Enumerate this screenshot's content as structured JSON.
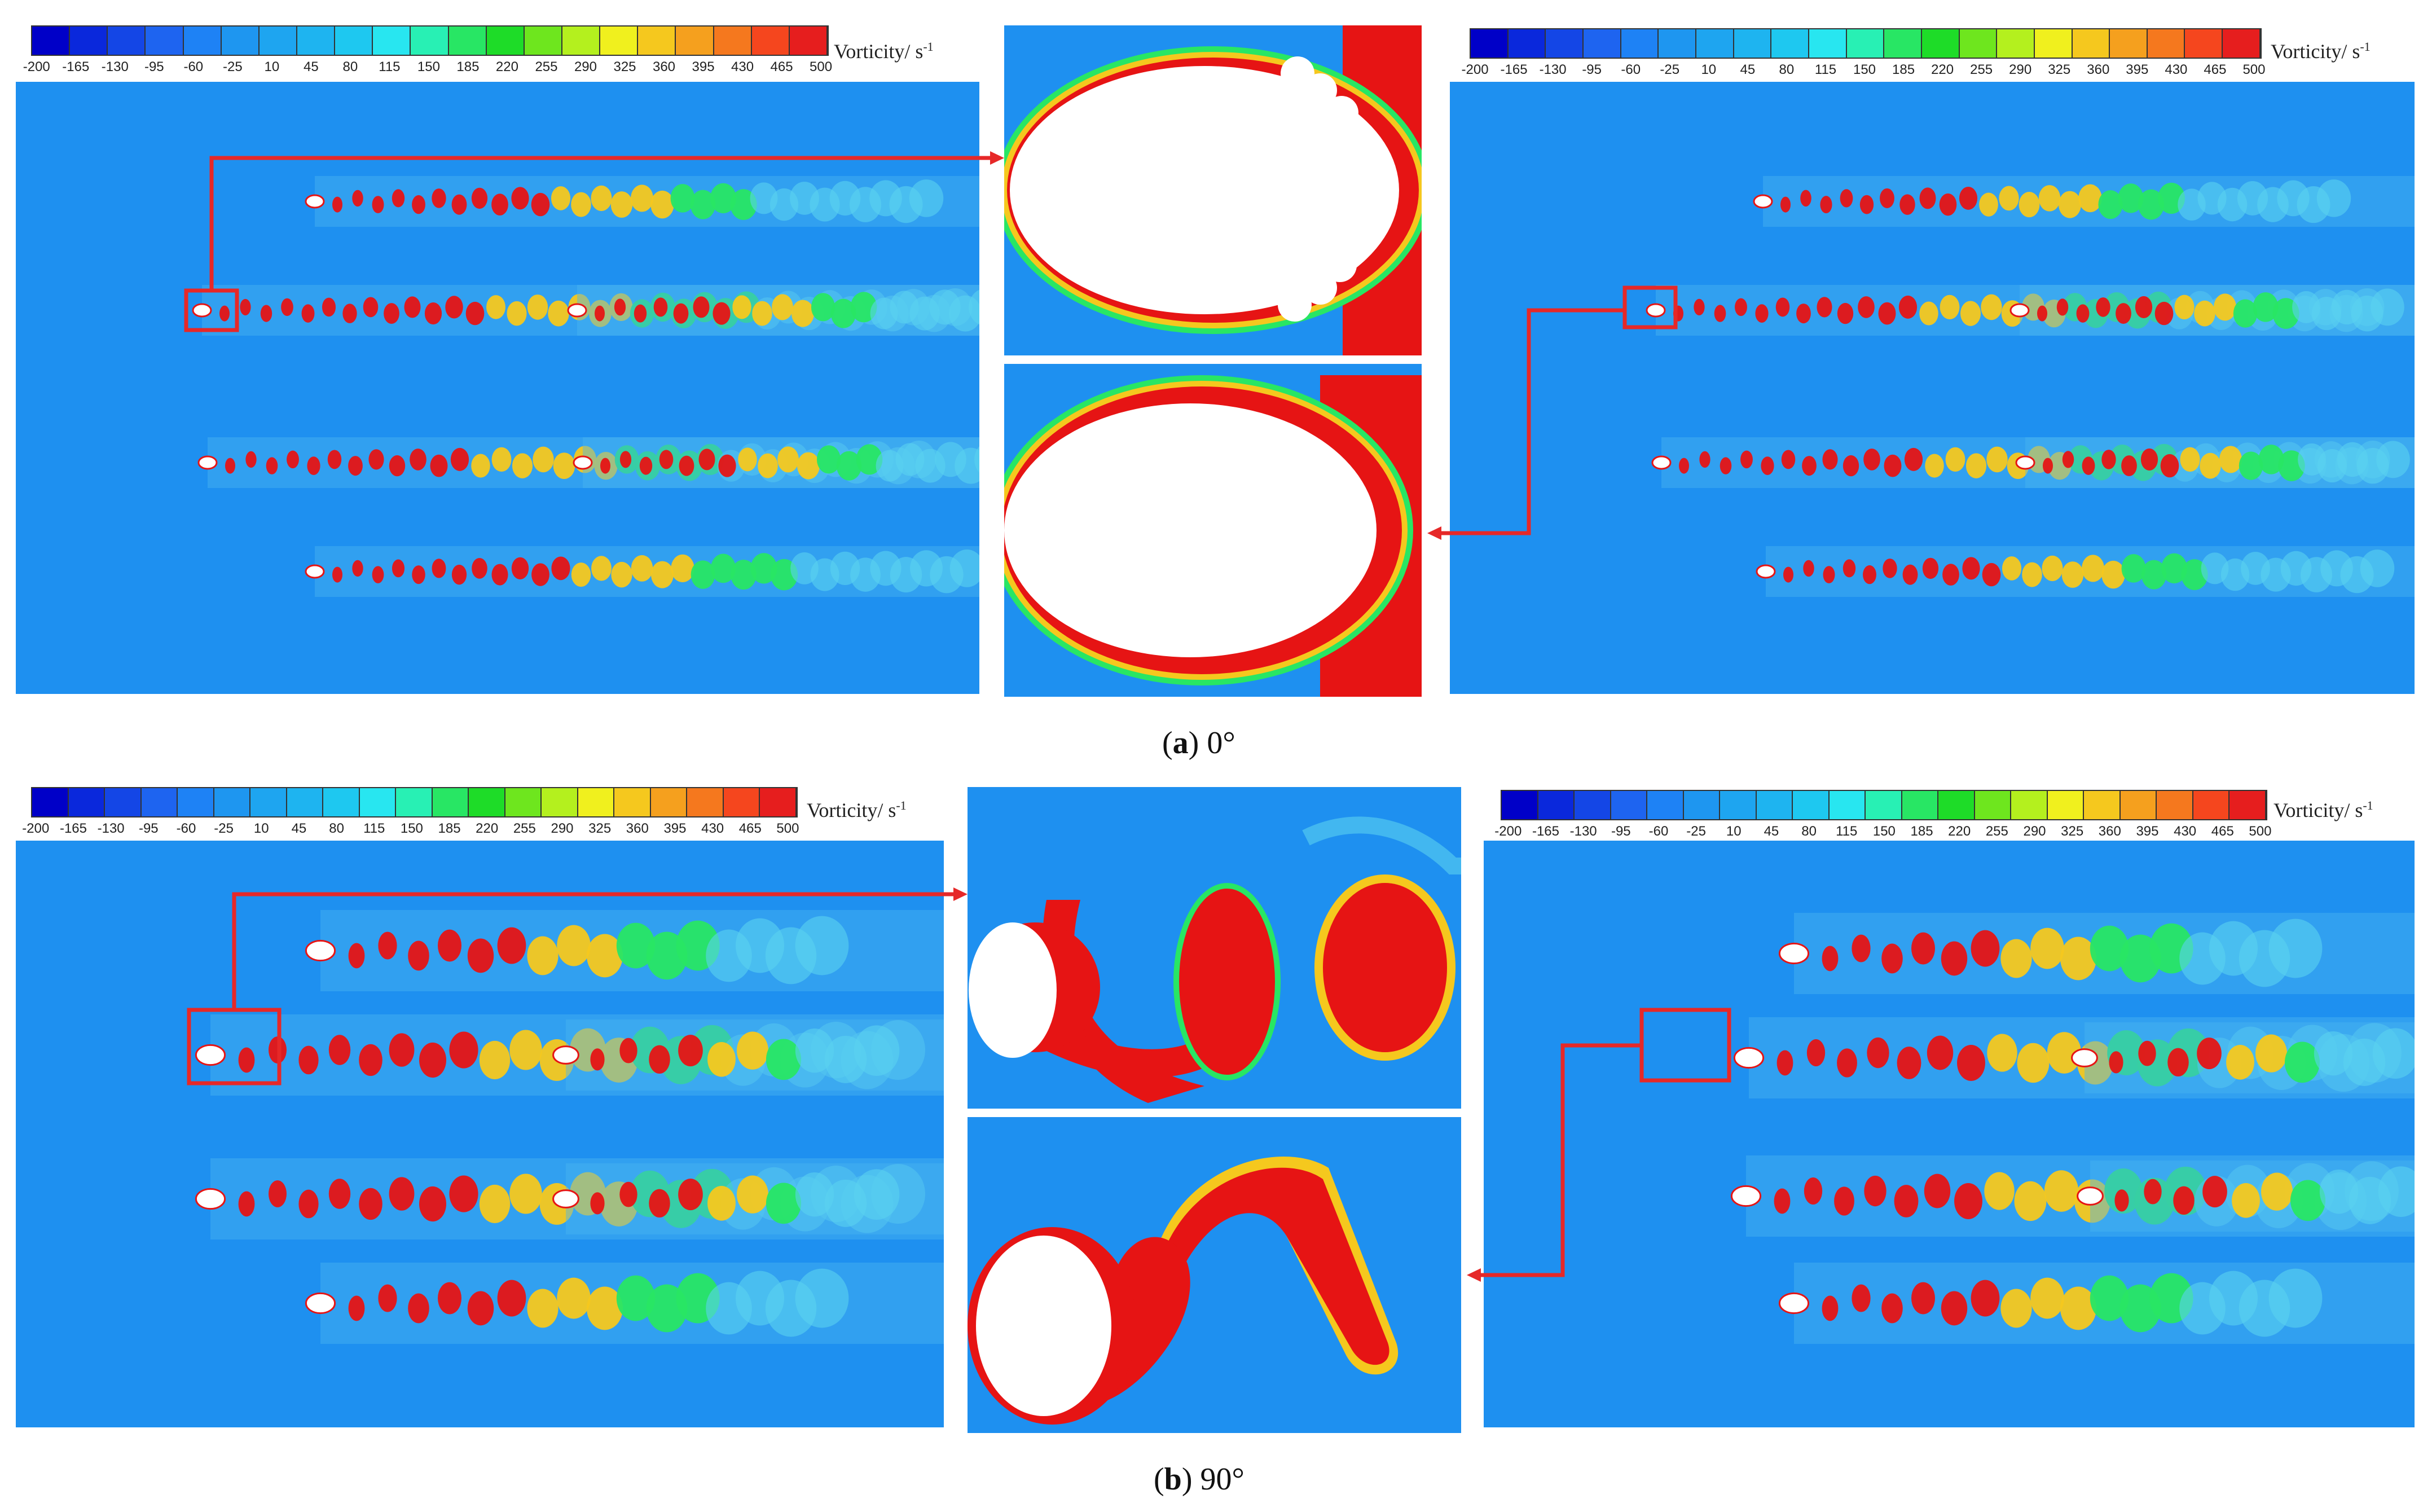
{
  "colorbar": {
    "title": "Vorticity/ s",
    "title_exp": "-1",
    "ticks": [
      "-200",
      "-165",
      "-130",
      "-95",
      "-60",
      "-25",
      "10",
      "45",
      "80",
      "115",
      "150",
      "185",
      "220",
      "255",
      "290",
      "325",
      "360",
      "395",
      "430",
      "465",
      "500"
    ],
    "colors": [
      "#0000c8",
      "#0a28dc",
      "#1446e6",
      "#1e64f0",
      "#1e82f5",
      "#1e96f0",
      "#1ea5f0",
      "#1eb4f0",
      "#1ec8f0",
      "#28e6f0",
      "#28f0b4",
      "#28e664",
      "#1edc28",
      "#6ee61e",
      "#b4f01e",
      "#f0f01e",
      "#f5c81e",
      "#f5a01e",
      "#f5781e",
      "#f5461e",
      "#e61e1e"
    ]
  },
  "figures": [
    {
      "label": "a",
      "angle": "0°"
    },
    {
      "label": "b",
      "angle": "90°"
    }
  ],
  "colors": {
    "background": "#1e90f0",
    "vortex": "#e61414",
    "highlight": "#e62828"
  }
}
